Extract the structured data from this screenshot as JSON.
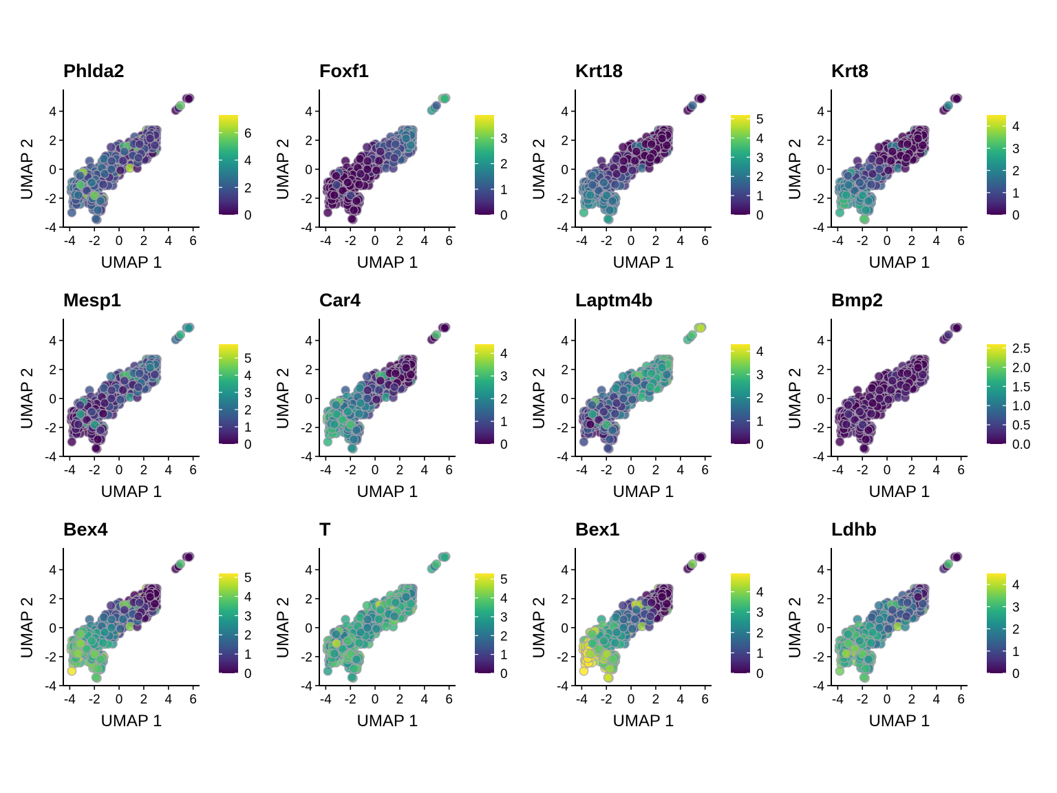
{
  "chart_data": [
    {
      "type": "scatter",
      "title": "Phlda2",
      "xlabel": "UMAP 1",
      "ylabel": "UMAP 2",
      "xlim": [
        -4.3,
        6.3
      ],
      "ylim": [
        -4,
        5.5
      ],
      "xticks": [
        -4,
        -2,
        0,
        2,
        4,
        6
      ],
      "yticks": [
        -4,
        -2,
        0,
        2,
        4
      ],
      "colorbar": {
        "max": 7.3,
        "ticks": [
          0,
          2,
          4,
          6
        ],
        "tick_labels": [
          "0",
          "2",
          "4",
          "6"
        ],
        "colormap": "viridis"
      },
      "expression_pattern": {
        "gradient": [
          -0.15,
          0.05
        ],
        "base": 1.4,
        "peak": 6.5,
        "spread": 0.7
      },
      "point_count": 560,
      "grid": false
    },
    {
      "type": "scatter",
      "title": "Foxf1",
      "xlabel": "UMAP 1",
      "ylabel": "UMAP 2",
      "xlim": [
        -4.3,
        6.3
      ],
      "ylim": [
        -4,
        5.5
      ],
      "xticks": [
        -4,
        -2,
        0,
        2,
        4,
        6
      ],
      "yticks": [
        -4,
        -2,
        0,
        2,
        4
      ],
      "colorbar": {
        "max": 3.9,
        "ticks": [
          0,
          1,
          2,
          3
        ],
        "tick_labels": [
          "0",
          "1",
          "2",
          "3"
        ],
        "colormap": "viridis"
      },
      "expression_pattern": {
        "gradient": [
          0.12,
          0.1
        ],
        "base": 0.2,
        "peak": 1.1,
        "spread": 0.25
      },
      "point_count": 560,
      "grid": false
    },
    {
      "type": "scatter",
      "title": "Krt18",
      "xlabel": "UMAP 1",
      "ylabel": "UMAP 2",
      "xlim": [
        -4.3,
        6.3
      ],
      "ylim": [
        -4,
        5.5
      ],
      "xticks": [
        -4,
        -2,
        0,
        2,
        4,
        6
      ],
      "yticks": [
        -4,
        -2,
        0,
        2,
        4
      ],
      "colorbar": {
        "max": 5.2,
        "ticks": [
          0,
          1,
          2,
          3,
          4,
          5
        ],
        "tick_labels": [
          "0",
          "1",
          "2",
          "3",
          "4",
          "5"
        ],
        "colormap": "viridis"
      },
      "expression_pattern": {
        "gradient": [
          -0.1,
          -0.25
        ],
        "base": 0.4,
        "peak": 2.2,
        "spread": 0.35
      },
      "point_count": 560,
      "grid": false
    },
    {
      "type": "scatter",
      "title": "Krt8",
      "xlabel": "UMAP 1",
      "ylabel": "UMAP 2",
      "xlim": [
        -4.3,
        6.3
      ],
      "ylim": [
        -4,
        5.5
      ],
      "xticks": [
        -4,
        -2,
        0,
        2,
        4,
        6
      ],
      "yticks": [
        -4,
        -2,
        0,
        2,
        4
      ],
      "colorbar": {
        "max": 4.5,
        "ticks": [
          0,
          1,
          2,
          3,
          4
        ],
        "tick_labels": [
          "0",
          "1",
          "2",
          "3",
          "4"
        ],
        "colormap": "viridis"
      },
      "expression_pattern": {
        "gradient": [
          -0.1,
          -0.25
        ],
        "base": 0.5,
        "peak": 2.6,
        "spread": 0.4
      },
      "point_count": 560,
      "grid": false
    },
    {
      "type": "scatter",
      "title": "Mesp1",
      "xlabel": "UMAP 1",
      "ylabel": "UMAP 2",
      "xlim": [
        -4.3,
        6.3
      ],
      "ylim": [
        -4,
        5.5
      ],
      "xticks": [
        -4,
        -2,
        0,
        2,
        4,
        6
      ],
      "yticks": [
        -4,
        -2,
        0,
        2,
        4
      ],
      "colorbar": {
        "max": 5.8,
        "ticks": [
          0,
          1,
          2,
          3,
          4,
          5
        ],
        "tick_labels": [
          "0",
          "1",
          "2",
          "3",
          "4",
          "5"
        ],
        "colormap": "viridis"
      },
      "expression_pattern": {
        "gradient": [
          0.03,
          0.12
        ],
        "base": 1.0,
        "peak": 4.2,
        "spread": 0.6
      },
      "point_count": 560,
      "grid": false
    },
    {
      "type": "scatter",
      "title": "Car4",
      "xlabel": "UMAP 1",
      "ylabel": "UMAP 2",
      "xlim": [
        -4.3,
        6.3
      ],
      "ylim": [
        -4,
        5.5
      ],
      "xticks": [
        -4,
        -2,
        0,
        2,
        4,
        6
      ],
      "yticks": [
        -4,
        -2,
        0,
        2,
        4
      ],
      "colorbar": {
        "max": 4.4,
        "ticks": [
          0,
          1,
          2,
          3,
          4
        ],
        "tick_labels": [
          "0",
          "1",
          "2",
          "3",
          "4"
        ],
        "colormap": "viridis"
      },
      "expression_pattern": {
        "gradient": [
          -0.15,
          -0.1
        ],
        "base": 1.0,
        "peak": 3.4,
        "spread": 0.55
      },
      "point_count": 560,
      "grid": false
    },
    {
      "type": "scatter",
      "title": "Laptm4b",
      "xlabel": "UMAP 1",
      "ylabel": "UMAP 2",
      "xlim": [
        -4.3,
        6.3
      ],
      "ylim": [
        -4,
        5.5
      ],
      "xticks": [
        -4,
        -2,
        0,
        2,
        4,
        6
      ],
      "yticks": [
        -4,
        -2,
        0,
        2,
        4
      ],
      "colorbar": {
        "max": 4.3,
        "ticks": [
          0,
          1,
          2,
          3,
          4
        ],
        "tick_labels": [
          "0",
          "1",
          "2",
          "3",
          "4"
        ],
        "colormap": "viridis"
      },
      "expression_pattern": {
        "gradient": [
          0.1,
          0.05
        ],
        "base": 1.6,
        "peak": 3.4,
        "spread": 0.5
      },
      "point_count": 560,
      "grid": false
    },
    {
      "type": "scatter",
      "title": "Bmp2",
      "xlabel": "UMAP 1",
      "ylabel": "UMAP 2",
      "xlim": [
        -4.3,
        6.3
      ],
      "ylim": [
        -4,
        5.5
      ],
      "xticks": [
        -4,
        -2,
        0,
        2,
        4,
        6
      ],
      "yticks": [
        -4,
        -2,
        0,
        2,
        4
      ],
      "colorbar": {
        "max": 2.6,
        "ticks": [
          0,
          0.5,
          1,
          1.5,
          2,
          2.5
        ],
        "tick_labels": [
          "0.0",
          "0.5",
          "1.0",
          "1.5",
          "2.0",
          "2.5"
        ],
        "colormap": "viridis"
      },
      "expression_pattern": {
        "gradient": [
          0,
          0
        ],
        "base": 0.05,
        "peak": 0.4,
        "spread": 0.1
      },
      "point_count": 560,
      "grid": false
    },
    {
      "type": "scatter",
      "title": "Bex4",
      "xlabel": "UMAP 1",
      "ylabel": "UMAP 2",
      "xlim": [
        -4.3,
        6.3
      ],
      "ylim": [
        -4,
        5.5
      ],
      "xticks": [
        -4,
        -2,
        0,
        2,
        4,
        6
      ],
      "yticks": [
        -4,
        -2,
        0,
        2,
        4
      ],
      "colorbar": {
        "max": 5.2,
        "ticks": [
          0,
          1,
          2,
          3,
          4,
          5
        ],
        "tick_labels": [
          "0",
          "1",
          "2",
          "3",
          "4",
          "5"
        ],
        "colormap": "viridis"
      },
      "expression_pattern": {
        "gradient": [
          -0.2,
          -0.2
        ],
        "base": 1.6,
        "peak": 5.0,
        "spread": 0.6
      },
      "point_count": 560,
      "grid": false
    },
    {
      "type": "scatter",
      "title": "T",
      "xlabel": "UMAP 1",
      "ylabel": "UMAP 2",
      "xlim": [
        -4.3,
        6.3
      ],
      "ylim": [
        -4,
        5.5
      ],
      "xticks": [
        -4,
        -2,
        0,
        2,
        4,
        6
      ],
      "yticks": [
        -4,
        -2,
        0,
        2,
        4
      ],
      "colorbar": {
        "max": 5.3,
        "ticks": [
          0,
          1,
          2,
          3,
          4,
          5
        ],
        "tick_labels": [
          "0",
          "1",
          "2",
          "3",
          "4",
          "5"
        ],
        "colormap": "viridis"
      },
      "expression_pattern": {
        "gradient": [
          0.03,
          -0.05
        ],
        "base": 3.1,
        "peak": 5.0,
        "spread": 0.6
      },
      "point_count": 560,
      "grid": false
    },
    {
      "type": "scatter",
      "title": "Bex1",
      "xlabel": "UMAP 1",
      "ylabel": "UMAP 2",
      "xlim": [
        -4.3,
        6.3
      ],
      "ylim": [
        -4,
        5.5
      ],
      "xticks": [
        -4,
        -2,
        0,
        2,
        4,
        6
      ],
      "yticks": [
        -4,
        -2,
        0,
        2,
        4
      ],
      "colorbar": {
        "max": 4.9,
        "ticks": [
          0,
          1,
          2,
          3,
          4
        ],
        "tick_labels": [
          "0",
          "1",
          "2",
          "3",
          "4"
        ],
        "colormap": "viridis"
      },
      "expression_pattern": {
        "gradient": [
          -0.25,
          -0.2
        ],
        "base": 1.9,
        "peak": 4.6,
        "spread": 0.55
      },
      "point_count": 560,
      "grid": false
    },
    {
      "type": "scatter",
      "title": "Ldhb",
      "xlabel": "UMAP 1",
      "ylabel": "UMAP 2",
      "xlim": [
        -4.3,
        6.3
      ],
      "ylim": [
        -4,
        5.5
      ],
      "xticks": [
        -4,
        -2,
        0,
        2,
        4,
        6
      ],
      "yticks": [
        -4,
        -2,
        0,
        2,
        4
      ],
      "colorbar": {
        "max": 4.5,
        "ticks": [
          0,
          1,
          2,
          3,
          4
        ],
        "tick_labels": [
          "0",
          "1",
          "2",
          "3",
          "4"
        ],
        "colormap": "viridis"
      },
      "expression_pattern": {
        "gradient": [
          -0.12,
          -0.1
        ],
        "base": 1.9,
        "peak": 4.0,
        "spread": 0.5
      },
      "point_count": 560,
      "grid": false
    }
  ],
  "embedding_shape": {
    "main_band": {
      "x_range": [
        -3.9,
        3.1
      ],
      "slope": 0.58,
      "intercept": 0.5,
      "half_width": 0.9
    },
    "lower_lobe": {
      "x_range": [
        -2.3,
        -1.2
      ],
      "y_range": [
        -3.6,
        -1.8
      ]
    },
    "upper_right": [
      [
        4.6,
        4.1
      ],
      [
        4.8,
        4.2
      ],
      [
        5.0,
        4.4
      ],
      [
        5.5,
        4.9
      ],
      [
        5.7,
        4.95
      ],
      [
        5.6,
        4.85
      ]
    ]
  },
  "colors": {
    "point_edge": "#a8a0b0",
    "axis": "#000000",
    "background": "#ffffff"
  }
}
